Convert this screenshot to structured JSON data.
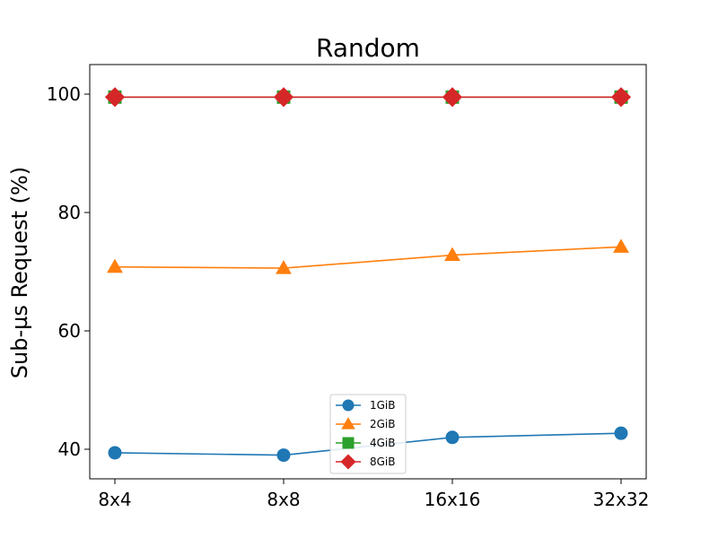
{
  "chart_data": {
    "type": "line",
    "title": "Random",
    "xlabel": "",
    "ylabel": "Sub-µs Request (%)",
    "categories": [
      "8x4",
      "8x8",
      "16x16",
      "32x32"
    ],
    "yticks": [
      40,
      60,
      80,
      100
    ],
    "ylim": [
      35,
      105
    ],
    "grid": false,
    "legend_position": "lower center",
    "series": [
      {
        "name": "1GiB",
        "values": [
          39.4,
          39.0,
          42.0,
          42.7
        ],
        "color": "#1f77b4",
        "marker": "circle"
      },
      {
        "name": "2GiB",
        "values": [
          70.8,
          70.6,
          72.8,
          74.2
        ],
        "color": "#ff7f0e",
        "marker": "triangle"
      },
      {
        "name": "4GiB",
        "values": [
          99.5,
          99.5,
          99.5,
          99.5
        ],
        "color": "#2ca02c",
        "marker": "square"
      },
      {
        "name": "8GiB",
        "values": [
          99.5,
          99.5,
          99.5,
          99.5
        ],
        "color": "#d62728",
        "marker": "diamond"
      }
    ]
  }
}
